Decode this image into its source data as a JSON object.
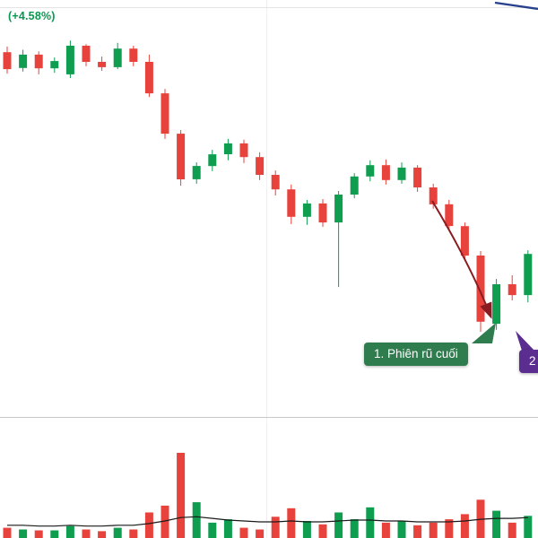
{
  "header": {
    "change_label": "(+4.58%)",
    "change_color": "#089950"
  },
  "chart_data": {
    "type": "candlestick",
    "title": "",
    "xlabel": "",
    "ylabel": "",
    "ylim": [
      0,
      100
    ],
    "panes": [
      "price",
      "volume"
    ],
    "grid": "minimal",
    "columns": [
      "open",
      "high",
      "low",
      "close",
      "volume"
    ],
    "candles": [
      [
        90.4,
        91.8,
        85.1,
        86.2,
        12
      ],
      [
        86.5,
        91.0,
        85.6,
        89.8,
        10
      ],
      [
        89.8,
        90.6,
        84.9,
        86.4,
        9
      ],
      [
        86.4,
        89.1,
        85.3,
        88.2,
        9
      ],
      [
        84.9,
        93.3,
        84.0,
        92.0,
        14
      ],
      [
        92.0,
        92.4,
        86.9,
        88.0,
        10
      ],
      [
        88.0,
        89.3,
        85.8,
        86.7,
        8
      ],
      [
        86.7,
        92.7,
        86.2,
        91.3,
        12
      ],
      [
        91.3,
        92.0,
        86.9,
        88.0,
        10
      ],
      [
        88.0,
        89.8,
        79.3,
        80.2,
        30
      ],
      [
        80.2,
        81.3,
        68.9,
        70.2,
        38
      ],
      [
        70.2,
        71.1,
        57.3,
        58.9,
        100
      ],
      [
        58.9,
        63.1,
        57.8,
        62.2,
        42
      ],
      [
        62.2,
        66.2,
        60.9,
        65.1,
        18
      ],
      [
        65.1,
        68.9,
        63.6,
        67.8,
        22
      ],
      [
        67.8,
        68.7,
        62.9,
        64.4,
        12
      ],
      [
        64.4,
        65.6,
        58.7,
        60.0,
        10
      ],
      [
        60.0,
        61.1,
        54.9,
        56.4,
        25
      ],
      [
        56.4,
        57.6,
        47.8,
        49.6,
        35
      ],
      [
        49.6,
        53.8,
        47.6,
        52.9,
        20
      ],
      [
        52.9,
        54.0,
        47.1,
        48.2,
        16
      ],
      [
        48.2,
        56.0,
        32.2,
        55.1,
        30
      ],
      [
        55.1,
        60.4,
        54.2,
        59.6,
        22
      ],
      [
        59.6,
        63.6,
        58.4,
        62.4,
        36
      ],
      [
        62.4,
        63.8,
        57.6,
        58.7,
        18
      ],
      [
        58.7,
        63.1,
        57.8,
        61.8,
        20
      ],
      [
        61.8,
        62.4,
        55.8,
        56.9,
        15
      ],
      [
        56.9,
        57.8,
        51.6,
        52.7,
        18
      ],
      [
        52.7,
        53.8,
        46.4,
        47.3,
        22
      ],
      [
        47.3,
        48.2,
        38.7,
        40.0,
        28
      ],
      [
        40.0,
        41.1,
        21.1,
        23.6,
        45
      ],
      [
        23.1,
        34.2,
        21.6,
        32.9,
        32
      ],
      [
        32.9,
        35.1,
        28.9,
        30.2,
        18
      ],
      [
        30.2,
        41.3,
        28.4,
        40.4,
        26
      ]
    ],
    "volume_ma": [
      15,
      15,
      14,
      14,
      15,
      14,
      14,
      15,
      15,
      17,
      20,
      24,
      25,
      23,
      21,
      20,
      19,
      19,
      20,
      19,
      19,
      20,
      21,
      21,
      20,
      20,
      19,
      19,
      19,
      20,
      22,
      23,
      23,
      24
    ]
  },
  "annotations": {
    "label1": {
      "text": "1. Phiên rũ cuối",
      "bg": "#2f7d4e"
    },
    "label2": {
      "text": "2",
      "bg": "#5c2d91"
    },
    "arrow_color": "#8a1c21"
  },
  "colors": {
    "up": "#0f9d4f",
    "down": "#e8423c",
    "grid": "#efefef",
    "separator": "#c8c8c8",
    "ma": "#1a1a1a",
    "trendline": "#27408b"
  }
}
